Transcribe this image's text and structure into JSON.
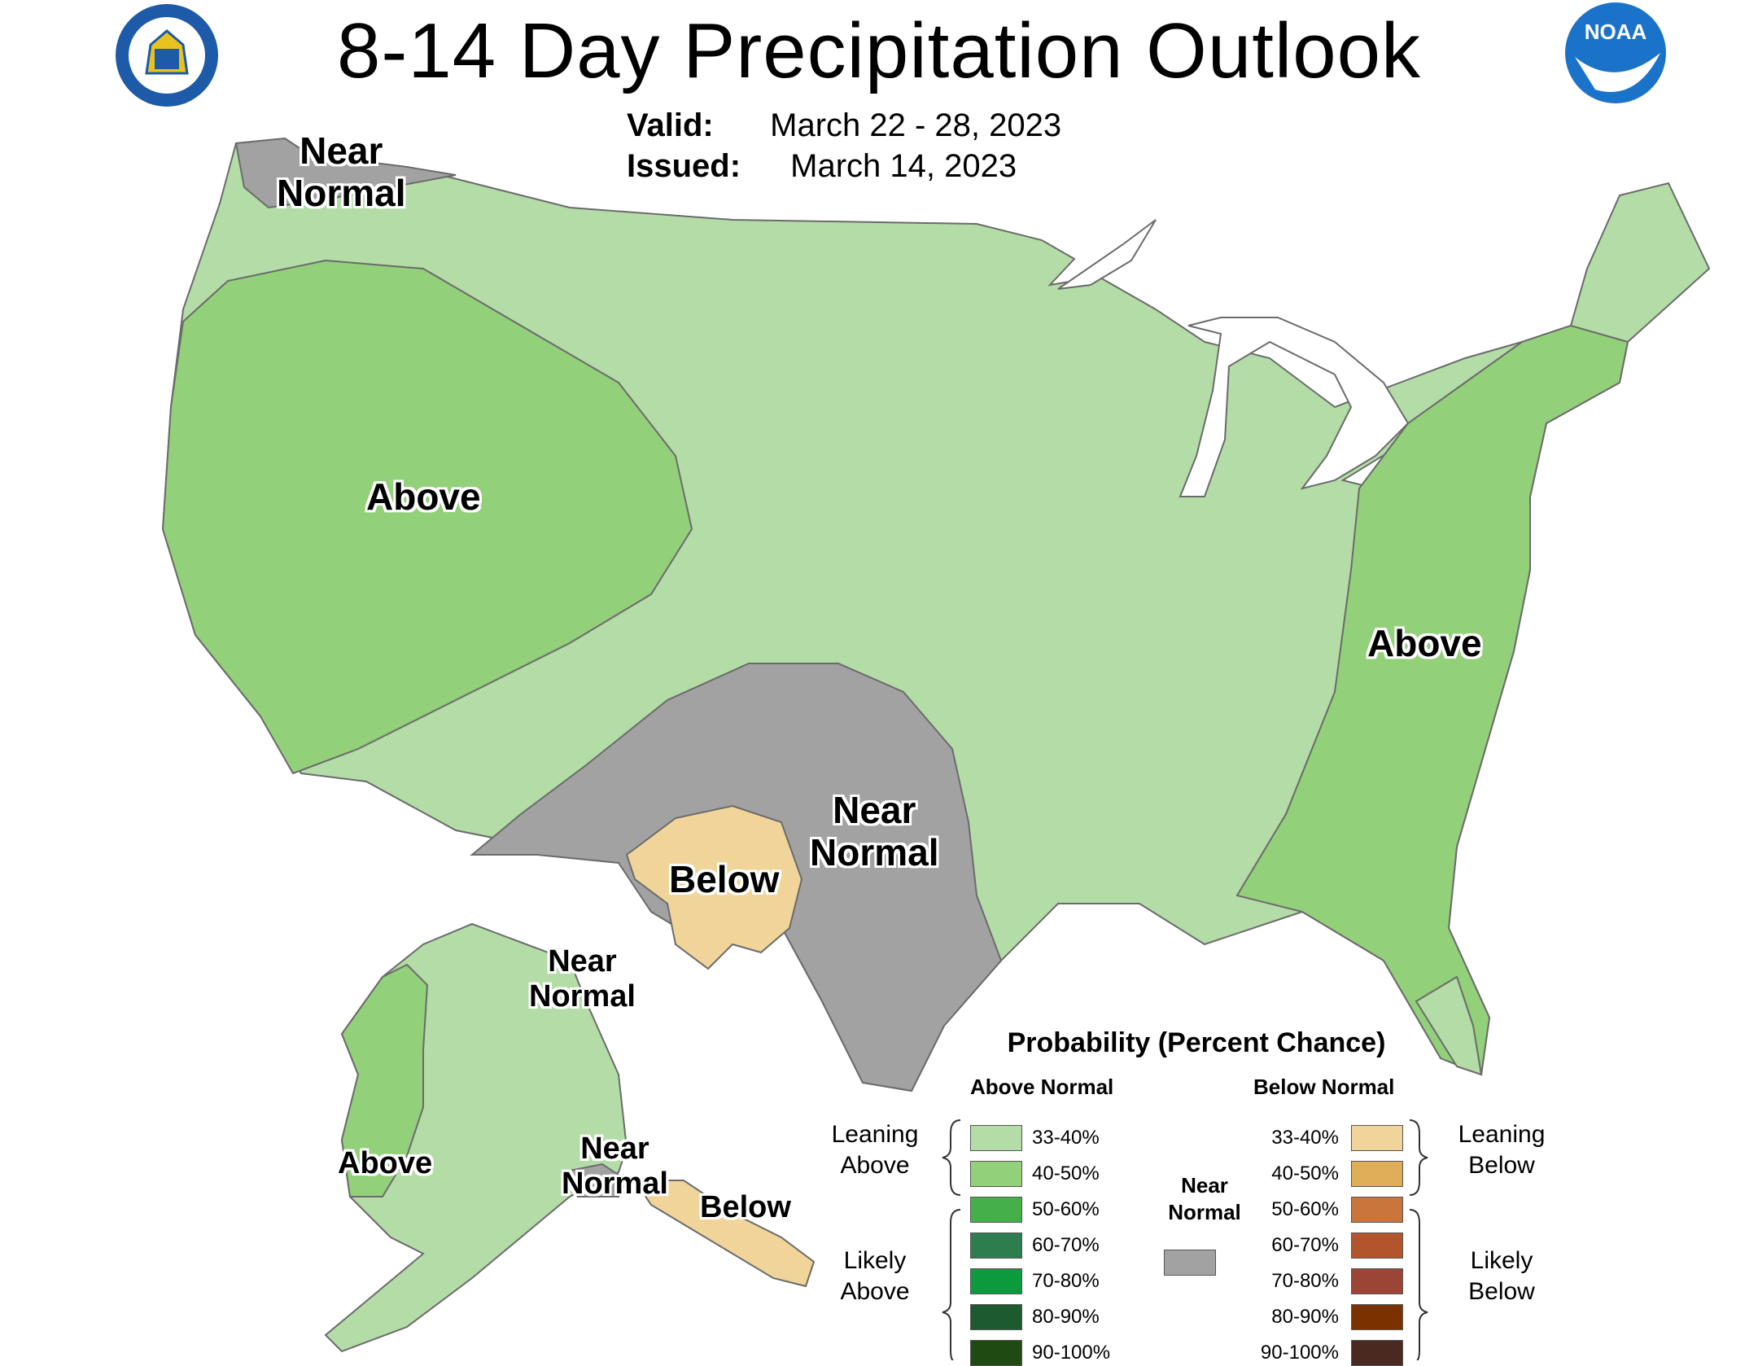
{
  "title": "8-14 Day Precipitation Outlook",
  "valid_label": "Valid:",
  "valid_value": "March 22 - 28, 2023",
  "issued_label": "Issued:",
  "issued_value": "March 14, 2023",
  "emblems": {
    "left": "department-of-commerce-seal-icon",
    "right": "noaa-logo-icon"
  },
  "colors": {
    "above_33_40": "#b3dca7",
    "above_40_50": "#93d07a",
    "above_50_60": "#45b04a",
    "above_60_70": "#2e7d4f",
    "above_70_80": "#0d9a3c",
    "above_80_90": "#1e5a30",
    "above_90_100": "#1f4a12",
    "below_33_40": "#f0d49a",
    "below_40_50": "#deae58",
    "below_50_60": "#c9753b",
    "below_60_70": "#b2552d",
    "below_70_80": "#9c4536",
    "below_80_90": "#7a3300",
    "below_90_100": "#4a2a20",
    "near_normal": "#a2a2a2",
    "water": "#ffffff"
  },
  "map_labels": {
    "nw_near_normal": "Near\nNormal",
    "west_above": "Above",
    "east_above": "Above",
    "south_near_normal": "Near\nNormal",
    "sw_below": "Below",
    "ak_near_normal_north": "Near\nNormal",
    "ak_above": "Above",
    "ak_near_normal_south": "Near\nNormal",
    "ak_below": "Below"
  },
  "legend": {
    "title": "Probability (Percent Chance)",
    "above_header": "Above Normal",
    "below_header": "Below Normal",
    "near_normal_label": "Near\nNormal",
    "above_ranges": [
      "33-40%",
      "40-50%",
      "50-60%",
      "60-70%",
      "70-80%",
      "80-90%",
      "90-100%"
    ],
    "below_ranges": [
      "33-40%",
      "40-50%",
      "50-60%",
      "60-70%",
      "70-80%",
      "80-90%",
      "90-100%"
    ],
    "leaning_above": "Leaning\nAbove",
    "likely_above": "Likely\nAbove",
    "leaning_below": "Leaning\nBelow",
    "likely_below": "Likely\nBelow"
  }
}
